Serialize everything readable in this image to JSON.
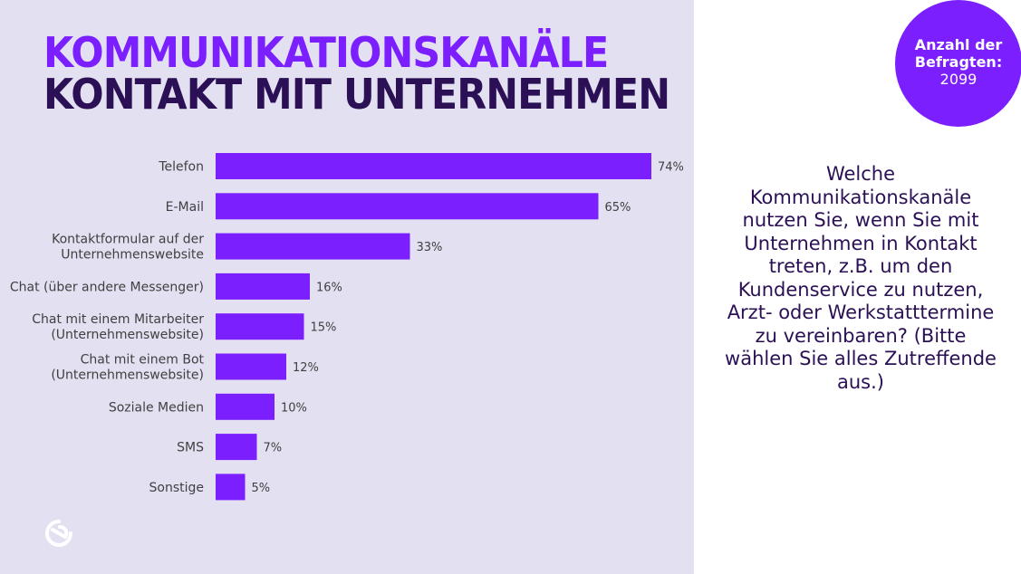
{
  "title_line1": "KOMMUNIKATIONSKANÄLE",
  "title_line2": "KONTAKT MIT UNTERNEHMEN",
  "badge": {
    "label": "Anzahl der Befragten:",
    "value": "2099"
  },
  "question": "Welche Kommunikationskanäle nutzen Sie, wenn Sie mit Unternehmen in Kontakt treten, z.B. um den Kundenservice zu nutzen, Arzt- oder Werkstatttermine zu vereinbaren? (Bitte wählen Sie alles Zutreffende aus.)",
  "colors": {
    "bar": "#7b1fff",
    "title_primary": "#7b1fff",
    "title_dark": "#2b1055",
    "panel": "#e3e0f2"
  },
  "logo_icon": "brand-logo-icon",
  "chart_data": {
    "type": "bar",
    "orientation": "horizontal",
    "categories": [
      [
        "Telefon"
      ],
      [
        "E-Mail"
      ],
      [
        "Kontaktformular auf der",
        "Unternehmenswebsite"
      ],
      [
        "Chat (über andere Messenger)"
      ],
      [
        "Chat mit einem Mitarbeiter",
        "(Unternehmenswebsite)"
      ],
      [
        "Chat mit einem Bot",
        "(Unternehmenswebsite)"
      ],
      [
        "Soziale Medien"
      ],
      [
        "SMS"
      ],
      [
        "Sonstige"
      ]
    ],
    "values": [
      74,
      65,
      33,
      16,
      15,
      12,
      10,
      7,
      5
    ],
    "value_labels": [
      "74%",
      "65%",
      "33%",
      "16%",
      "15%",
      "12%",
      "10%",
      "7%",
      "5%"
    ],
    "xlim": [
      0,
      74
    ],
    "grid": false,
    "legend": "none"
  }
}
